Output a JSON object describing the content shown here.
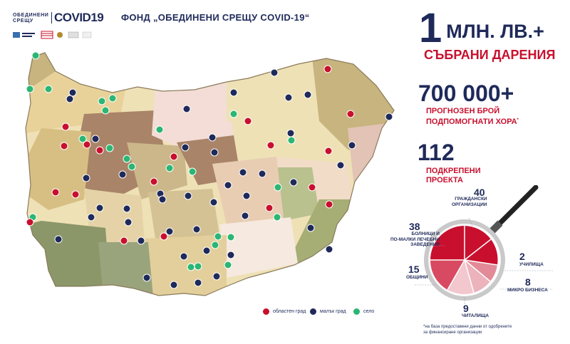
{
  "logo": {
    "line1": "ОБЕДИНЕНИ",
    "line2": "СРЕЩУ",
    "brand": "COVID19"
  },
  "title": "ФОНД „ОБЕДИНЕНИ СРЕЩУ COVID-19“",
  "stats": {
    "donations_value": "1",
    "donations_unit": "МЛН. ЛВ.+",
    "donations_label": "СЪБРАНИ ДАРЕНИЯ",
    "people_value": "700 000+",
    "people_label_1": "ПРОГНОЗЕН БРОЙ",
    "people_label_2": "ПОДПОМОГНАТИ ХОРА",
    "people_note_mark": "*",
    "projects_value": "112",
    "projects_label_1": "ПОДКРЕПЕНИ",
    "projects_label_2": "ПРОЕКТА"
  },
  "breakdown": [
    {
      "count": "40",
      "label_1": "ГРАЖДАНСКИ",
      "label_2": "ОРГАНИЗАЦИИ",
      "label_3": ""
    },
    {
      "count": "38",
      "label_1": "БОЛНИЦИ И",
      "label_2": "ПО-МАЛКИ ЛЕЧЕБНИ",
      "label_3": "ЗАВЕДЕНИЯ"
    },
    {
      "count": "15",
      "label_1": "ОБЩИНИ",
      "label_2": "",
      "label_3": ""
    },
    {
      "count": "9",
      "label_1": "ЧИТАЛИЩА",
      "label_2": "",
      "label_3": ""
    },
    {
      "count": "8",
      "label_1": "МИКРО БИЗНЕСА",
      "label_2": "",
      "label_3": ""
    },
    {
      "count": "2",
      "label_1": "УЧИЛИЩА",
      "label_2": "",
      "label_3": ""
    }
  ],
  "legend": {
    "regional_city": "областен град",
    "small_town": "малък град",
    "village": "село"
  },
  "colors": {
    "navy": "#1f2a5a",
    "red": "#c8102e",
    "green": "#2bb673"
  },
  "footnote": {
    "line1": "*на база предоставени данни от одобрените",
    "line2": "за финансиране организации"
  }
}
